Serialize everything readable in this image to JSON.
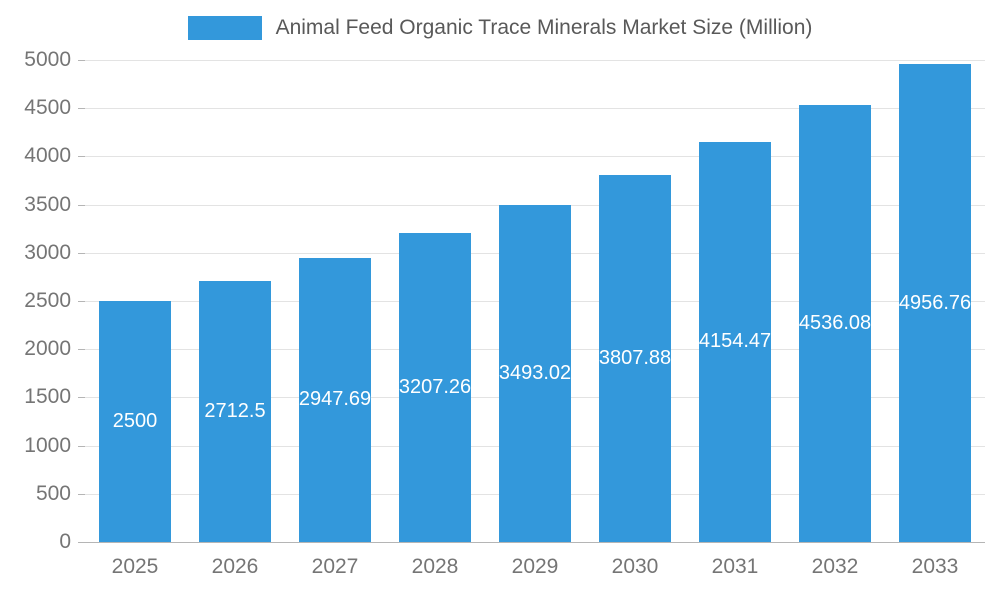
{
  "chart_data": {
    "type": "bar",
    "title": "Animal Feed Organic Trace Minerals Market Size (Million)",
    "categories": [
      "2025",
      "2026",
      "2027",
      "2028",
      "2029",
      "2030",
      "2031",
      "2032",
      "2033"
    ],
    "values": [
      2500,
      2712.5,
      2947.69,
      3207.26,
      3493.02,
      3807.88,
      4154.47,
      4536.08,
      4956.76
    ],
    "labels": [
      "2500",
      "2712.5",
      "2947.69",
      "3207.26",
      "3493.02",
      "3807.88",
      "4154.47",
      "4536.08",
      "4956.76"
    ],
    "xlabel": "",
    "ylabel": "",
    "ylim": [
      0,
      5000
    ],
    "ytick_step": 500,
    "grid": true,
    "legend_position": "top",
    "bar_color": "#3398DB",
    "label_color": "#ffffff",
    "title_color": "#595959",
    "axis_text_color": "#757575",
    "grid_color": "#e3e3e3"
  }
}
